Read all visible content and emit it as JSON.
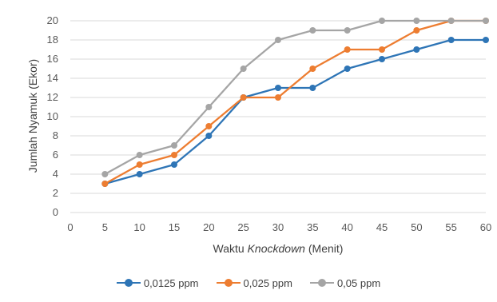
{
  "chart_data": {
    "type": "line",
    "xlabel_prefix": "Waktu ",
    "xlabel_italic": "Knockdown",
    "xlabel_suffix": " (Menit)",
    "ylabel": "Jumlah Nyamuk (Ekor)",
    "x_ticks": [
      "0",
      "5",
      "10",
      "15",
      "20",
      "25",
      "30",
      "35",
      "40",
      "45",
      "50",
      "55",
      "60"
    ],
    "y_ticks": [
      "0",
      "2",
      "4",
      "6",
      "8",
      "10",
      "12",
      "14",
      "16",
      "18",
      "20"
    ],
    "xlim": [
      0,
      60
    ],
    "ylim": [
      0,
      20
    ],
    "grid": "horizontal",
    "legend_position": "bottom",
    "x": [
      5,
      10,
      15,
      20,
      25,
      30,
      35,
      40,
      45,
      50,
      55,
      60
    ],
    "series": [
      {
        "name": "0,0125 ppm",
        "color": "#2E75B6",
        "values": [
          3,
          4,
          5,
          8,
          12,
          13,
          13,
          15,
          16,
          17,
          18,
          18
        ]
      },
      {
        "name": "0,025 ppm",
        "color": "#ED7D31",
        "values": [
          3,
          5,
          6,
          9,
          12,
          12,
          15,
          17,
          17,
          19,
          20,
          20
        ]
      },
      {
        "name": "0,05 ppm",
        "color": "#A5A5A5",
        "values": [
          4,
          6,
          7,
          11,
          15,
          18,
          19,
          19,
          20,
          20,
          20,
          20
        ]
      }
    ]
  }
}
